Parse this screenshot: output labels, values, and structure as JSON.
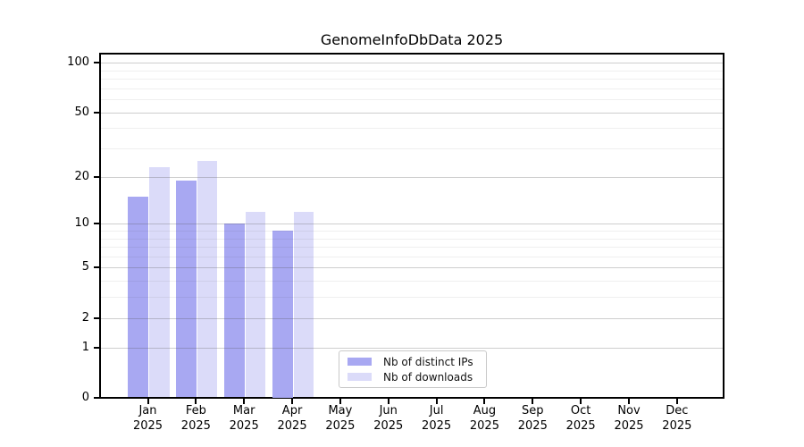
{
  "figure": {
    "background": "#ffffff",
    "axis_color": "#000000"
  },
  "chart_data": {
    "type": "bar",
    "title": "GenomeInfoDbData 2025",
    "categories": [
      "Jan 2025",
      "Feb 2025",
      "Mar 2025",
      "Apr 2025",
      "May 2025",
      "Jun 2025",
      "Jul 2025",
      "Aug 2025",
      "Sep 2025",
      "Oct 2025",
      "Nov 2025",
      "Dec 2025"
    ],
    "series": [
      {
        "name": "Nb of distinct IPs",
        "color": "#a8a8f2",
        "values": [
          15,
          19,
          10,
          9,
          null,
          null,
          null,
          null,
          null,
          null,
          null,
          null
        ]
      },
      {
        "name": "Nb of downloads",
        "color": "#dbdbf9",
        "values": [
          23,
          25,
          12,
          12,
          null,
          null,
          null,
          null,
          null,
          null,
          null,
          null
        ]
      }
    ],
    "xlabel": "",
    "ylabel": "",
    "yscale": "log1p",
    "yticks": [
      0,
      1,
      2,
      5,
      10,
      20,
      50,
      100
    ],
    "ylim": [
      0,
      112
    ],
    "grid": "horizontal-major-and-minor",
    "legend_position": "lower-center-inside"
  }
}
